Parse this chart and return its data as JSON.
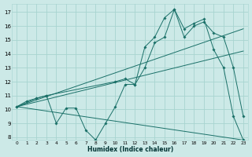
{
  "xlabel": "Humidex (Indice chaleur)",
  "bg_color": "#cce9e7",
  "grid_color": "#a8d4d0",
  "line_color": "#1a7068",
  "xlim": [
    -0.5,
    23.5
  ],
  "ylim": [
    7.8,
    17.6
  ],
  "xticks": [
    0,
    1,
    2,
    3,
    4,
    5,
    6,
    7,
    8,
    9,
    10,
    11,
    12,
    13,
    14,
    15,
    16,
    17,
    18,
    19,
    20,
    21,
    22,
    23
  ],
  "yticks": [
    8,
    9,
    10,
    11,
    12,
    13,
    14,
    15,
    16,
    17
  ],
  "series": [
    {
      "x": [
        0,
        1,
        2,
        3,
        4,
        5,
        6,
        7,
        8,
        9,
        10,
        11,
        12,
        13,
        14,
        15,
        16,
        17,
        18,
        19,
        20,
        21,
        22,
        23
      ],
      "y": [
        10.2,
        10.6,
        10.8,
        11.0,
        9.0,
        10.1,
        10.1,
        8.5,
        7.8,
        9.0,
        10.2,
        11.8,
        11.8,
        14.5,
        15.2,
        16.6,
        17.2,
        15.2,
        16.0,
        16.3,
        15.5,
        15.2,
        13.0,
        9.5
      ]
    },
    {
      "x": [
        0,
        2,
        3,
        10,
        11,
        12,
        13,
        14,
        15,
        16,
        17,
        18,
        19,
        20,
        21,
        22,
        23
      ],
      "y": [
        10.2,
        10.8,
        11.0,
        12.0,
        12.2,
        11.8,
        13.0,
        14.8,
        15.2,
        17.2,
        15.8,
        16.2,
        16.5,
        14.3,
        13.0,
        9.5,
        7.8
      ]
    },
    {
      "x": [
        0,
        23
      ],
      "y": [
        10.2,
        15.8
      ]
    },
    {
      "x": [
        0,
        23
      ],
      "y": [
        10.2,
        14.2
      ]
    },
    {
      "x": [
        0,
        23
      ],
      "y": [
        10.2,
        7.8
      ]
    }
  ]
}
